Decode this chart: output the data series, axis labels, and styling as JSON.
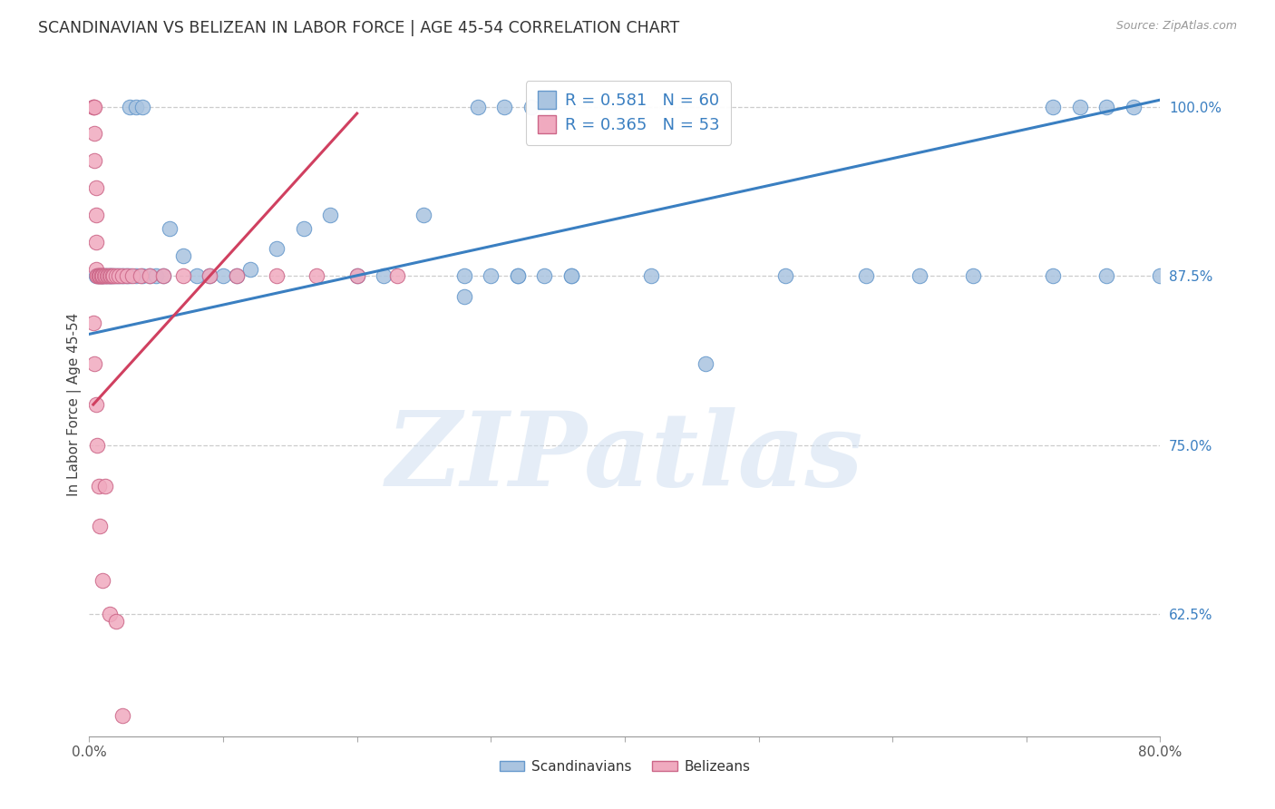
{
  "title": "SCANDINAVIAN VS BELIZEAN IN LABOR FORCE | AGE 45-54 CORRELATION CHART",
  "source": "Source: ZipAtlas.com",
  "ylabel": "In Labor Force | Age 45-54",
  "watermark": "ZIPatlas",
  "legend_blue_r": "R = 0.581",
  "legend_blue_n": "N = 60",
  "legend_pink_r": "R = 0.365",
  "legend_pink_n": "N = 53",
  "legend_label_blue": "Scandinavians",
  "legend_label_pink": "Belizeans",
  "blue_color": "#aac4e0",
  "pink_color": "#f0aabf",
  "blue_edge": "#6699cc",
  "pink_edge": "#cc6688",
  "blue_line_color": "#3a7fc1",
  "pink_line_color": "#d04060",
  "xmin": 0.0,
  "xmax": 0.8,
  "ymin": 0.535,
  "ymax": 1.025,
  "yticks": [
    0.625,
    0.75,
    0.875,
    1.0
  ],
  "ytick_labels": [
    "62.5%",
    "75.0%",
    "87.5%",
    "100.0%"
  ],
  "xtick_left": "0.0%",
  "xtick_right": "80.0%",
  "blue_x": [
    0.005,
    0.007,
    0.009,
    0.01,
    0.012,
    0.013,
    0.015,
    0.016,
    0.018,
    0.02,
    0.022,
    0.024,
    0.026,
    0.028,
    0.03,
    0.035,
    0.04,
    0.045,
    0.05,
    0.055,
    0.06,
    0.07,
    0.08,
    0.09,
    0.1,
    0.11,
    0.12,
    0.14,
    0.16,
    0.18,
    0.2,
    0.22,
    0.25,
    0.28,
    0.32,
    0.36,
    0.28,
    0.3,
    0.32,
    0.34,
    0.36,
    0.42,
    0.46,
    0.52,
    0.58,
    0.62,
    0.66,
    0.72,
    0.76,
    0.8,
    0.03,
    0.035,
    0.04,
    0.29,
    0.31,
    0.33,
    0.72,
    0.74,
    0.76,
    0.78
  ],
  "blue_y": [
    0.875,
    0.875,
    0.875,
    0.875,
    0.875,
    0.875,
    0.875,
    0.875,
    0.875,
    0.875,
    0.875,
    0.875,
    0.875,
    0.875,
    0.875,
    0.875,
    0.875,
    0.875,
    0.875,
    0.875,
    0.91,
    0.89,
    0.875,
    0.875,
    0.875,
    0.875,
    0.88,
    0.895,
    0.91,
    0.92,
    0.875,
    0.875,
    0.92,
    0.875,
    0.875,
    0.875,
    0.86,
    0.875,
    0.875,
    0.875,
    0.875,
    0.875,
    0.81,
    0.875,
    0.875,
    0.875,
    0.875,
    0.875,
    0.875,
    0.875,
    1.0,
    1.0,
    1.0,
    1.0,
    1.0,
    1.0,
    1.0,
    1.0,
    1.0,
    1.0
  ],
  "pink_x": [
    0.003,
    0.003,
    0.004,
    0.004,
    0.004,
    0.005,
    0.005,
    0.005,
    0.005,
    0.006,
    0.006,
    0.007,
    0.007,
    0.008,
    0.008,
    0.009,
    0.009,
    0.01,
    0.01,
    0.011,
    0.012,
    0.013,
    0.014,
    0.015,
    0.016,
    0.017,
    0.018,
    0.02,
    0.022,
    0.025,
    0.028,
    0.032,
    0.038,
    0.045,
    0.055,
    0.07,
    0.09,
    0.11,
    0.14,
    0.17,
    0.2,
    0.23,
    0.003,
    0.004,
    0.005,
    0.006,
    0.007,
    0.008,
    0.01,
    0.012,
    0.015,
    0.02,
    0.025
  ],
  "pink_y": [
    1.0,
    1.0,
    1.0,
    0.98,
    0.96,
    0.94,
    0.92,
    0.9,
    0.88,
    0.875,
    0.875,
    0.875,
    0.875,
    0.875,
    0.875,
    0.875,
    0.875,
    0.875,
    0.875,
    0.875,
    0.875,
    0.875,
    0.875,
    0.875,
    0.875,
    0.875,
    0.875,
    0.875,
    0.875,
    0.875,
    0.875,
    0.875,
    0.875,
    0.875,
    0.875,
    0.875,
    0.875,
    0.875,
    0.875,
    0.875,
    0.875,
    0.875,
    0.84,
    0.81,
    0.78,
    0.75,
    0.72,
    0.69,
    0.65,
    0.72,
    0.625,
    0.62,
    0.55
  ],
  "blue_line_x0": 0.0,
  "blue_line_x1": 0.8,
  "blue_line_y0": 0.832,
  "blue_line_y1": 1.005,
  "pink_line_x0": 0.003,
  "pink_line_x1": 0.2,
  "pink_line_y0": 0.78,
  "pink_line_y1": 0.995
}
